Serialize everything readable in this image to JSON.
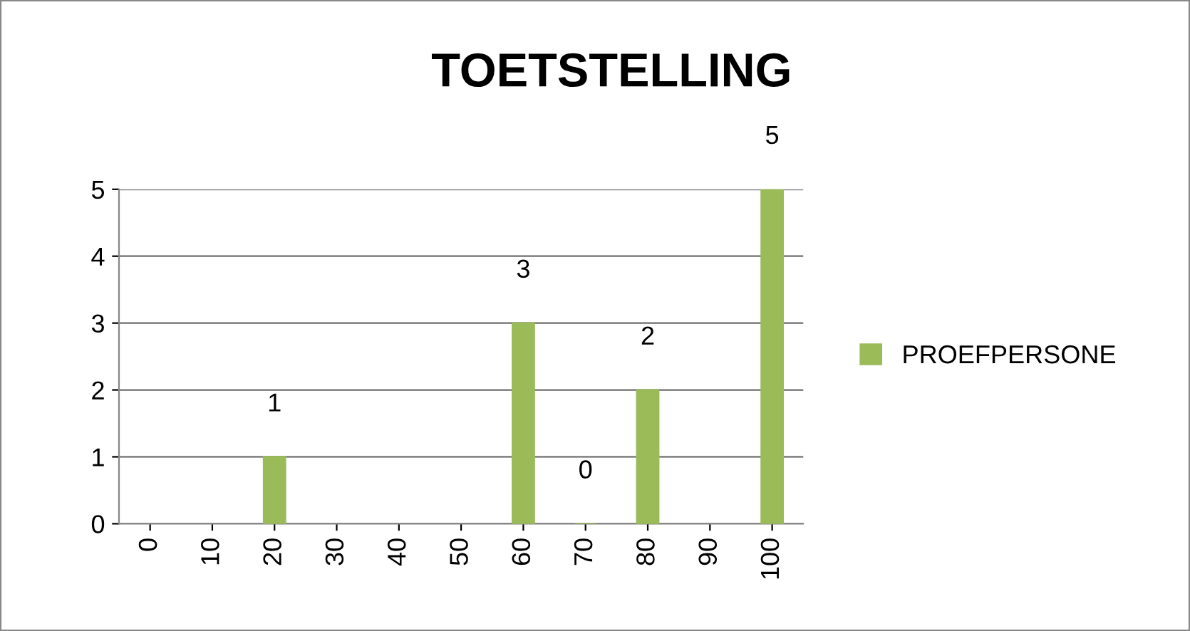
{
  "chart_data": {
    "type": "bar",
    "title": "TOETSTELLING",
    "categories": [
      "0",
      "10",
      "20",
      "30",
      "40",
      "50",
      "60",
      "70",
      "80",
      "90",
      "100"
    ],
    "series": [
      {
        "name": "PROEFPERSONE",
        "color": "#9bbb59",
        "values": [
          null,
          null,
          1,
          null,
          null,
          null,
          3,
          0,
          2,
          null,
          5
        ],
        "value_labels": [
          null,
          null,
          "1",
          null,
          null,
          null,
          "3",
          "0",
          "2",
          null,
          "5"
        ]
      }
    ],
    "ylim": [
      0,
      5
    ],
    "yticks": [
      0,
      1,
      2,
      3,
      4,
      5
    ],
    "grid": "y",
    "legend": "right"
  }
}
